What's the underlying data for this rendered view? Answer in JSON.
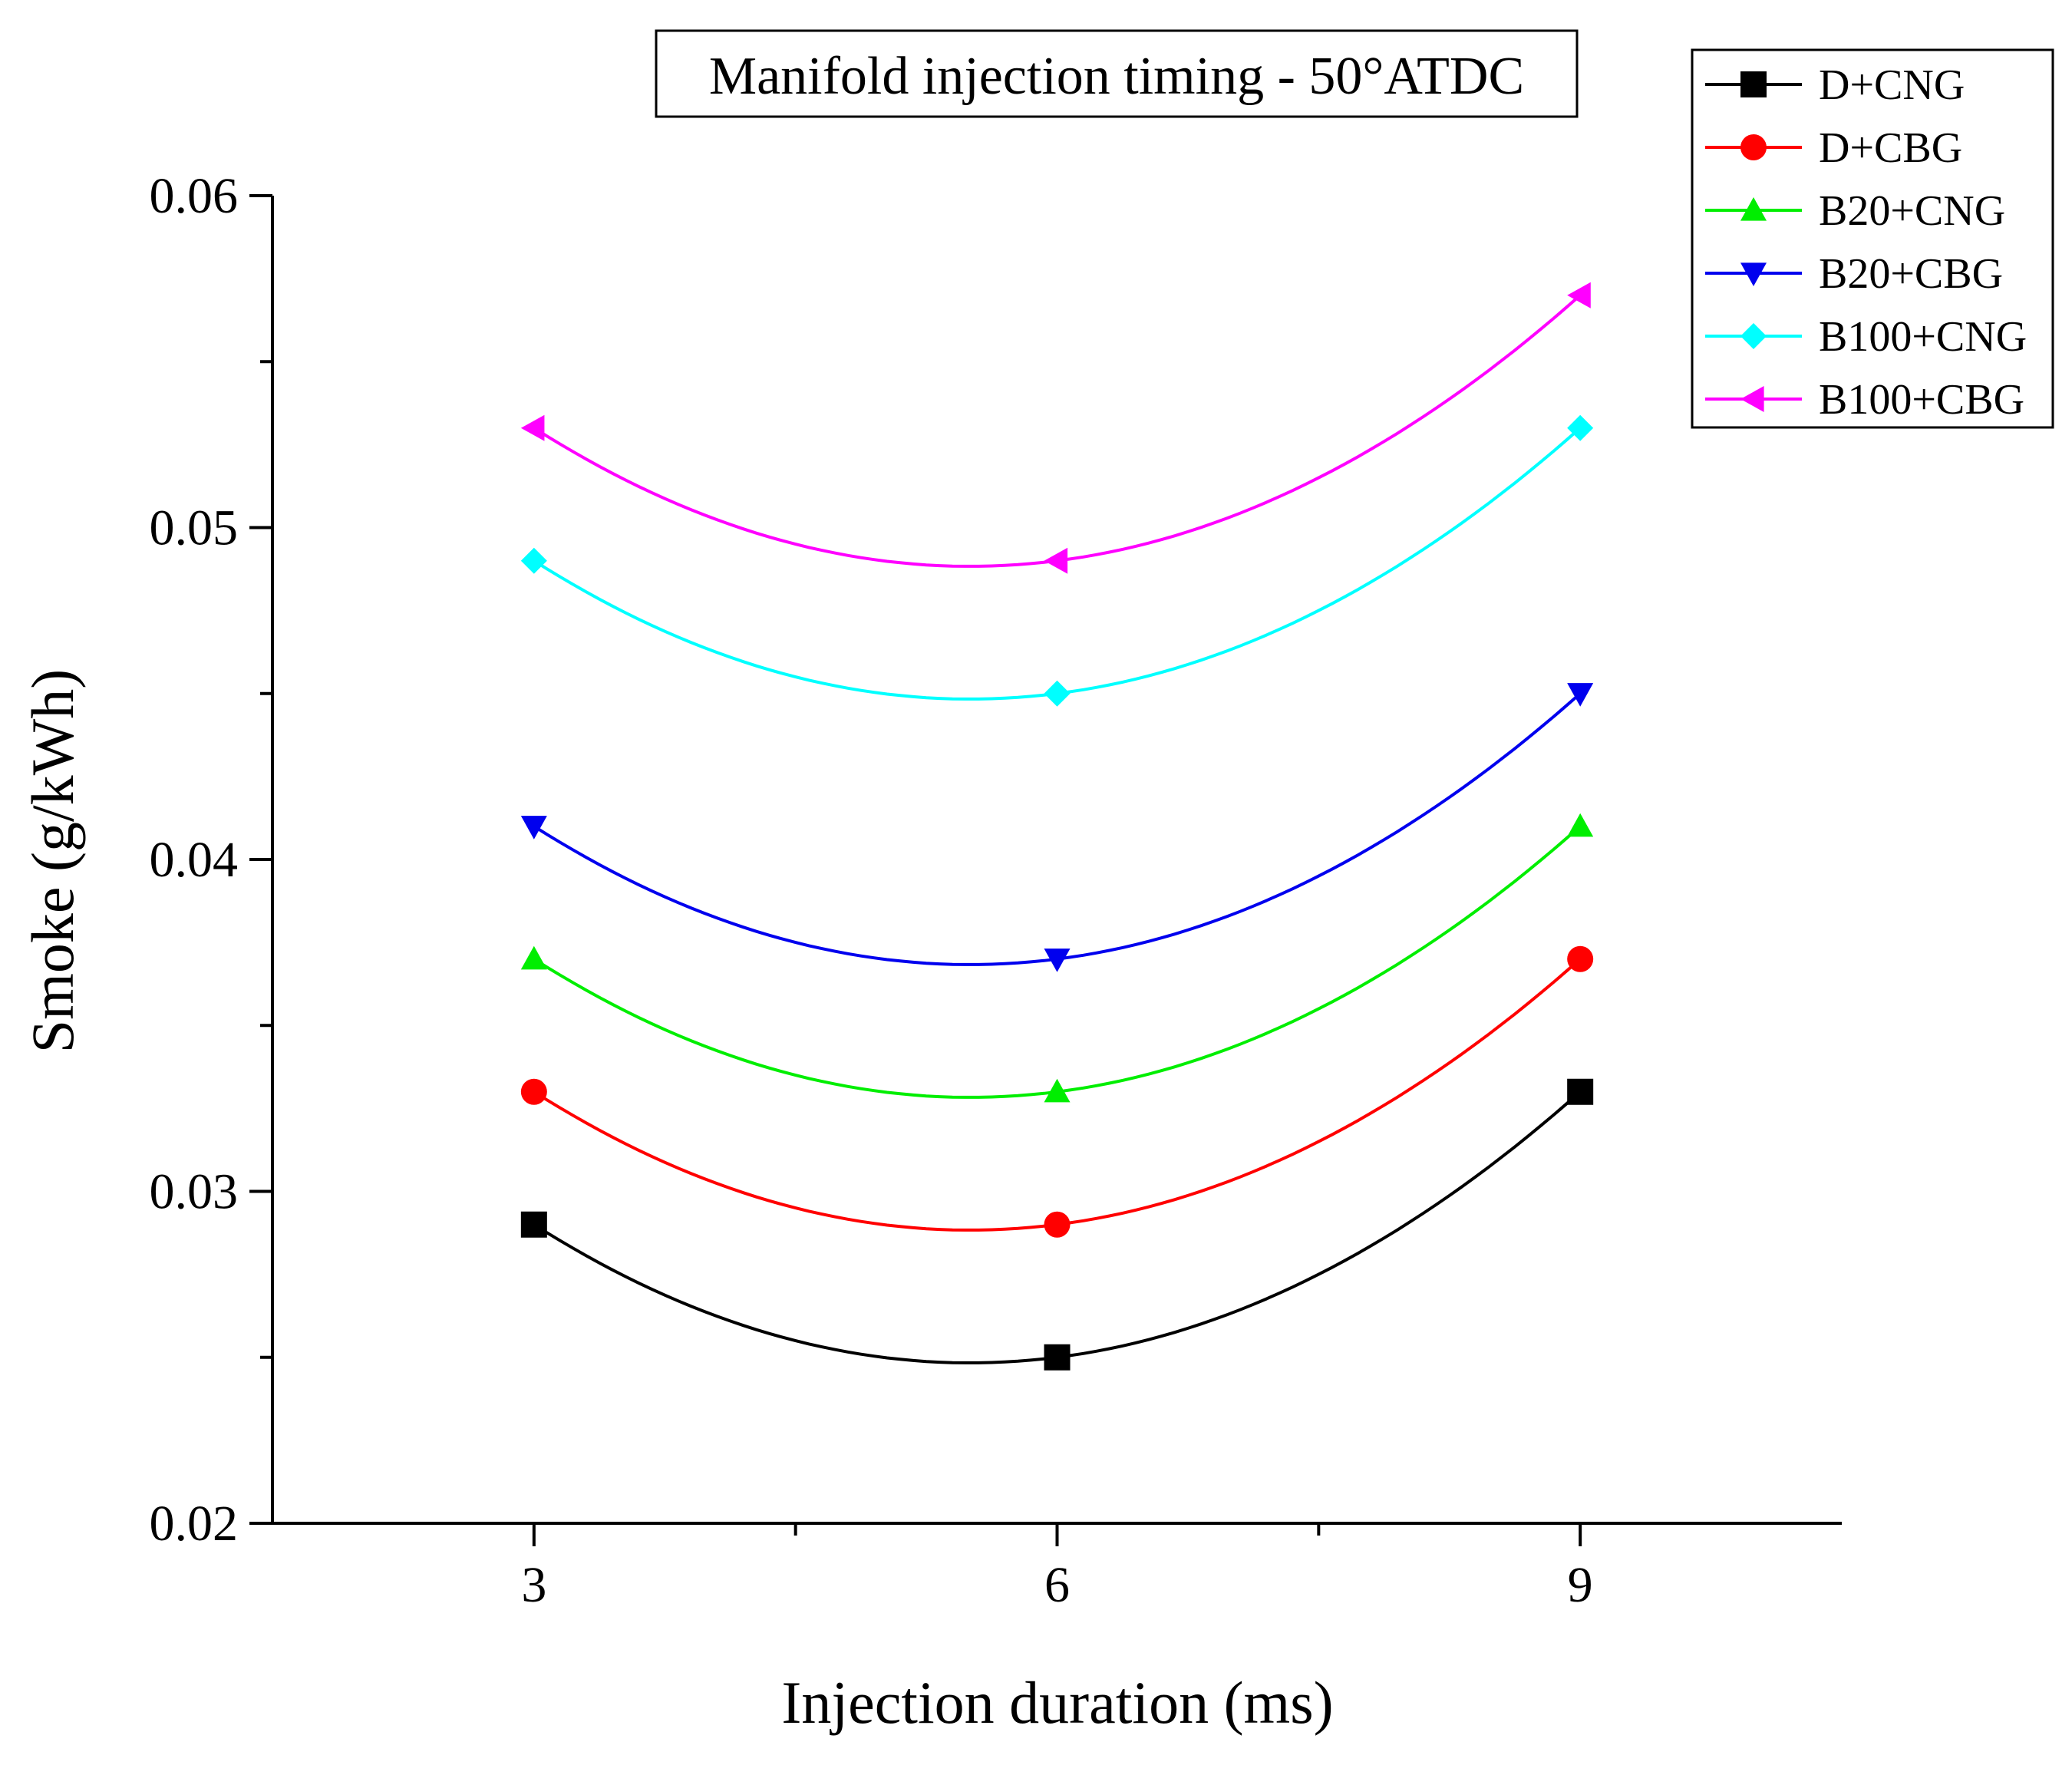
{
  "chart_data": {
    "type": "line",
    "title": "Manifold injection timing - 50°ATDC",
    "xlabel": "Injection duration (ms)",
    "ylabel": "Smoke (g/kWh)",
    "x": [
      3,
      6,
      9
    ],
    "xlim": [
      1.5,
      10.5
    ],
    "ylim": [
      0.02,
      0.06
    ],
    "xticks": [
      3,
      6,
      9
    ],
    "xtick_labels": [
      "3",
      "6",
      "9"
    ],
    "yticks": [
      0.02,
      0.03,
      0.04,
      0.05,
      0.06
    ],
    "ytick_labels": [
      "0.02",
      "0.03",
      "0.04",
      "0.05",
      "0.06"
    ],
    "legend_position": "top-right",
    "grid": false,
    "smooth": true,
    "series": [
      {
        "name": "D+CNG",
        "color": "#000000",
        "marker": "square",
        "values": [
          0.029,
          0.025,
          0.033
        ]
      },
      {
        "name": "D+CBG",
        "color": "#ff0000",
        "marker": "circle",
        "values": [
          0.033,
          0.029,
          0.037
        ]
      },
      {
        "name": "B20+CNG",
        "color": "#00ee00",
        "marker": "triangle-up",
        "values": [
          0.037,
          0.033,
          0.041
        ]
      },
      {
        "name": "B20+CBG",
        "color": "#0000ee",
        "marker": "triangle-down",
        "values": [
          0.041,
          0.037,
          0.045
        ]
      },
      {
        "name": "B100+CNG",
        "color": "#00ffff",
        "marker": "diamond",
        "values": [
          0.049,
          0.045,
          0.053
        ]
      },
      {
        "name": "B100+CBG",
        "color": "#ff00ff",
        "marker": "triangle-left",
        "values": [
          0.053,
          0.049,
          0.057
        ]
      }
    ]
  }
}
